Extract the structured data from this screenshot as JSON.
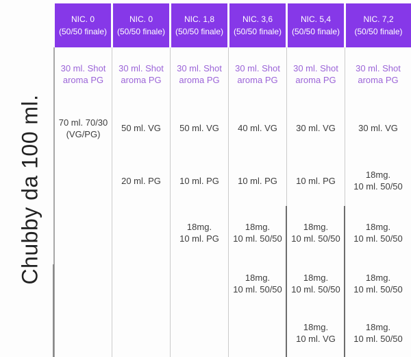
{
  "row_label": "Chubby da 100 ml.",
  "colors": {
    "header_bg": "#8638E8",
    "header_text": "#FFFFFF",
    "shot_text": "#9B64D8",
    "body_text": "#3C3C3C",
    "divider": "#CBCBCB",
    "divider_dark": "#6D6D6D"
  },
  "table": {
    "columns": [
      {
        "nic": "NIC. 0",
        "finale": "(50/50 finale)",
        "cells": [
          [
            "30 ml. Shot",
            "aroma PG"
          ],
          [
            "70 ml. 70/30",
            "(VG/PG)"
          ],
          [],
          [],
          [],
          []
        ]
      },
      {
        "nic": "NIC. 0",
        "finale": "(50/50 finale)",
        "cells": [
          [
            "30 ml. Shot",
            "aroma PG"
          ],
          [
            "50 ml. VG"
          ],
          [
            "20 ml. PG"
          ],
          [],
          [],
          []
        ]
      },
      {
        "nic": "NIC. 1,8",
        "finale": "(50/50 finale)",
        "cells": [
          [
            "30 ml. Shot",
            "aroma PG"
          ],
          [
            "50 ml. VG"
          ],
          [
            "10 ml. PG"
          ],
          [
            "18mg.",
            "10 ml. PG"
          ],
          [],
          []
        ]
      },
      {
        "nic": "NIC. 3,6",
        "finale": "(50/50 finale)",
        "cells": [
          [
            "30 ml. Shot",
            "aroma PG"
          ],
          [
            "40 ml. VG"
          ],
          [
            "10 ml. PG"
          ],
          [
            "18mg.",
            "10 ml. 50/50"
          ],
          [
            "18mg.",
            "10 ml. 50/50"
          ],
          []
        ]
      },
      {
        "nic": "NIC. 5,4",
        "finale": "(50/50 finale)",
        "cells": [
          [
            "30 ml. Shot",
            "aroma PG"
          ],
          [
            "30 ml. VG"
          ],
          [
            "10 ml. PG"
          ],
          [
            "18mg.",
            "10 ml. 50/50"
          ],
          [
            "18mg.",
            "10 ml. 50/50"
          ],
          [
            "18mg.",
            "10 ml. VG"
          ]
        ]
      },
      {
        "nic": "NIC. 7,2",
        "finale": "(50/50 finale)",
        "cells": [
          [
            "30 ml. Shot",
            "aroma PG"
          ],
          [
            "30 ml. VG"
          ],
          [
            "18mg.",
            "10 ml. 50/50"
          ],
          [
            "18mg.",
            "10 ml. 50/50"
          ],
          [
            "18mg.",
            "10 ml. 50/50"
          ],
          [
            "18mg.",
            "10 ml. 50/50"
          ]
        ]
      }
    ]
  }
}
